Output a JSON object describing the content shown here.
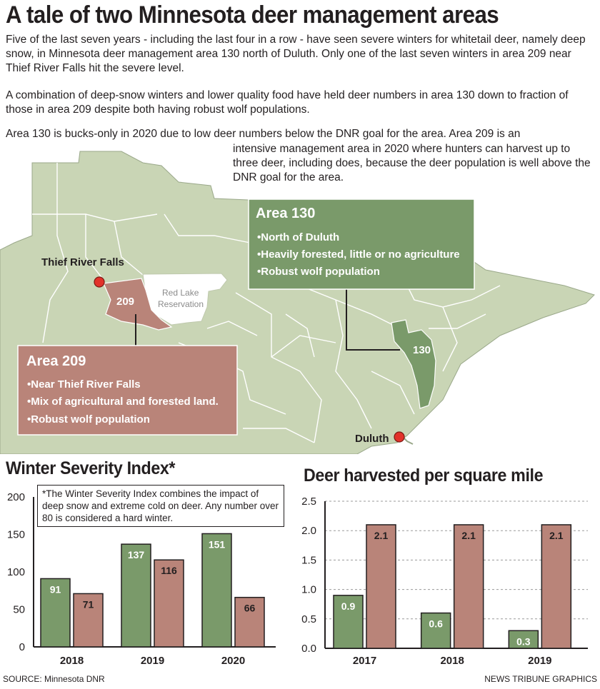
{
  "title": "A tale of two Minnesota deer management areas",
  "paragraphs": {
    "p1": "Five of the last seven years - including the last four in a row - have seen severe winters for whitetail deer, namely deep snow, in Minnesota deer management area 130 north of Duluth. Only one of the last seven winters in area 209 near Thief River Falls hit the severe level.",
    "p2": "A combination of deep-snow winters and lower quality food have held deer numbers in area 130 down to fraction of those in area 209 despite both having robust wolf populations.",
    "p3a": "Area 130 is bucks-only in 2020 due to low deer numbers below the DNR goal for the area. Area 209 is an",
    "p3b": "intensive management area in 2020 where hunters can harvest up to three deer, including does, because the deer population is well above the DNR goal for the area."
  },
  "map": {
    "labels": {
      "thief_river_falls": "Thief River Falls",
      "duluth": "Duluth",
      "red_lake_1": "Red Lake",
      "red_lake_2": "Reservation",
      "area_209_tag": "209",
      "area_130_tag": "130"
    },
    "area_130_box": {
      "header": "Area 130",
      "bullets": [
        "•North of Duluth",
        "•Heavily forested, little or no agriculture",
        "•Robust wolf population"
      ]
    },
    "area_209_box": {
      "header": "Area 209",
      "bullets": [
        "•Near Thief River Falls",
        "•Mix of agricultural and forested land.",
        "•Robust wolf population"
      ]
    },
    "colors": {
      "land": "#c9d5b5",
      "border": "#ffffff",
      "area_130": "#7a9a6a",
      "area_209": "#b98479",
      "city_dot": "#e2322a"
    }
  },
  "wsi_note": "*The Winter Severity Index combines the impact of deep snow and extreme cold on deer. Any number over 80 is considered a hard winter.",
  "chart_data": [
    {
      "type": "bar",
      "title": "Winter Severity Index*",
      "categories": [
        "2018",
        "2019",
        "2020"
      ],
      "series": [
        {
          "values": [
            91,
            137,
            151
          ],
          "color": "#7a9a6a"
        },
        {
          "values": [
            71,
            116,
            66
          ],
          "color": "#b98479"
        }
      ],
      "ylim": [
        0,
        200
      ],
      "yticks": [
        "0",
        "50",
        "100",
        "150",
        "200"
      ],
      "grid": false
    },
    {
      "type": "bar",
      "title": "Deer harvested per square mile",
      "categories": [
        "2017",
        "2018",
        "2019"
      ],
      "series": [
        {
          "values": [
            0.9,
            0.6,
            0.3
          ],
          "color": "#7a9a6a"
        },
        {
          "values": [
            2.1,
            2.1,
            2.1
          ],
          "color": "#b98479"
        }
      ],
      "ylim": [
        0,
        2.5
      ],
      "yticks": [
        "0.0",
        "0.5",
        "1.0",
        "1.5",
        "2.0",
        "2.5"
      ],
      "grid": true
    }
  ],
  "footer": {
    "source": "SOURCE: Minnesota DNR",
    "credit": "NEWS TRIBUNE GRAPHICS"
  }
}
